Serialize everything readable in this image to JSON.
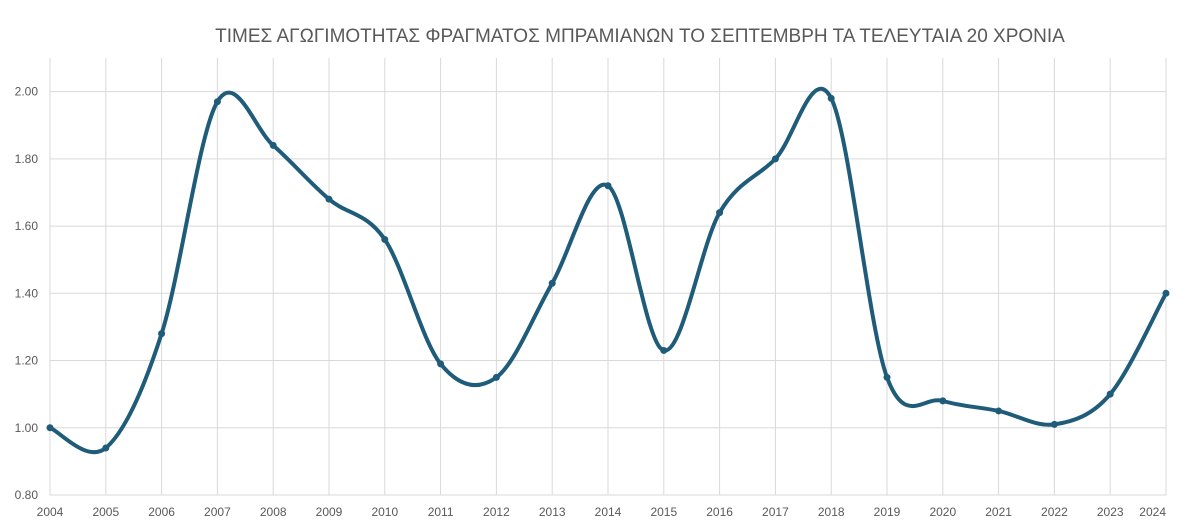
{
  "chart_data": {
    "type": "line",
    "title": "ΤΙΜΕΣ ΑΓΩΓΙΜΟΤΗΤΑΣ ΦΡΑΓΜΑΤΟΣ ΜΠΡΑΜΙΑΝΩΝ ΤΟ ΣΕΠΤΕΜΒΡΗ ΤΑ ΤΕΛΕΥΤΑΙΑ 20 ΧΡΟΝΙΑ",
    "xlabel": "",
    "ylabel": "",
    "categories": [
      "2004",
      "2005",
      "2006",
      "2007",
      "2008",
      "2009",
      "2010",
      "2011",
      "2012",
      "2013",
      "2014",
      "2015",
      "2016",
      "2017",
      "2018",
      "2019",
      "2020",
      "2021",
      "2022",
      "2023",
      "2024"
    ],
    "series": [
      {
        "values": [
          1.0,
          0.94,
          1.28,
          1.97,
          1.84,
          1.68,
          1.56,
          1.19,
          1.15,
          1.43,
          1.72,
          1.23,
          1.64,
          1.8,
          1.98,
          1.15,
          1.08,
          1.05,
          1.01,
          1.1,
          1.4
        ]
      }
    ],
    "ylim": [
      0.8,
      2.1
    ],
    "yticks": [
      "0.80",
      "1.00",
      "1.20",
      "1.40",
      "1.60",
      "1.80",
      "2.00"
    ],
    "smooth": true,
    "grid": true,
    "legend": "none",
    "line_color": "#1f5c7a"
  }
}
